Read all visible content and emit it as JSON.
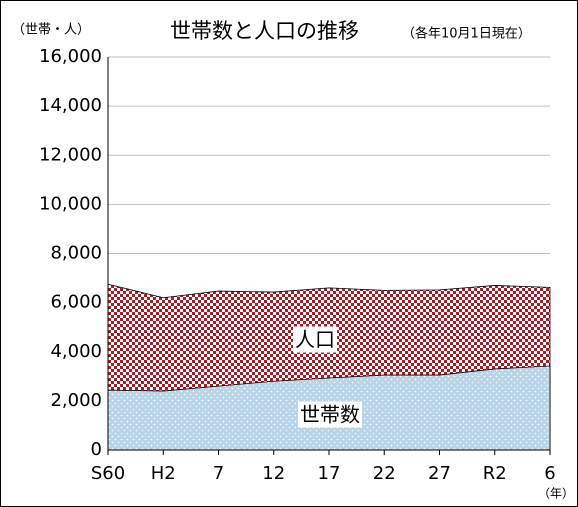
{
  "chart_data": {
    "type": "area",
    "title": "世帯数と人口の推移",
    "subtitle": "（各年10月1日現在）",
    "y_label": "（世帯・人）",
    "x_label": "（年）",
    "categories": [
      "S60",
      "H2",
      "7",
      "12",
      "17",
      "22",
      "27",
      "R2",
      "6"
    ],
    "series": [
      {
        "name": "人口",
        "color": "#a0202a",
        "values": [
          6750,
          6200,
          6470,
          6430,
          6600,
          6500,
          6520,
          6700,
          6620
        ]
      },
      {
        "name": "世帯数",
        "color": "#b8d4e8",
        "values": [
          2440,
          2400,
          2600,
          2800,
          2930,
          3050,
          3050,
          3300,
          3420
        ]
      }
    ],
    "ylim": [
      0,
      16000
    ],
    "yticks": [
      0,
      {
        "value": 2000,
        "label": "2,000"
      },
      {
        "value": 4000,
        "label": "4,000"
      },
      {
        "value": 6000,
        "label": "6,000"
      },
      {
        "value": 8000,
        "label": "8,000"
      },
      {
        "value": 10000,
        "label": "10,000"
      },
      {
        "value": 12000,
        "label": "12,000"
      },
      {
        "value": 14000,
        "label": "14,000"
      },
      {
        "value": 16000,
        "label": "16,000"
      }
    ],
    "grid": true
  }
}
